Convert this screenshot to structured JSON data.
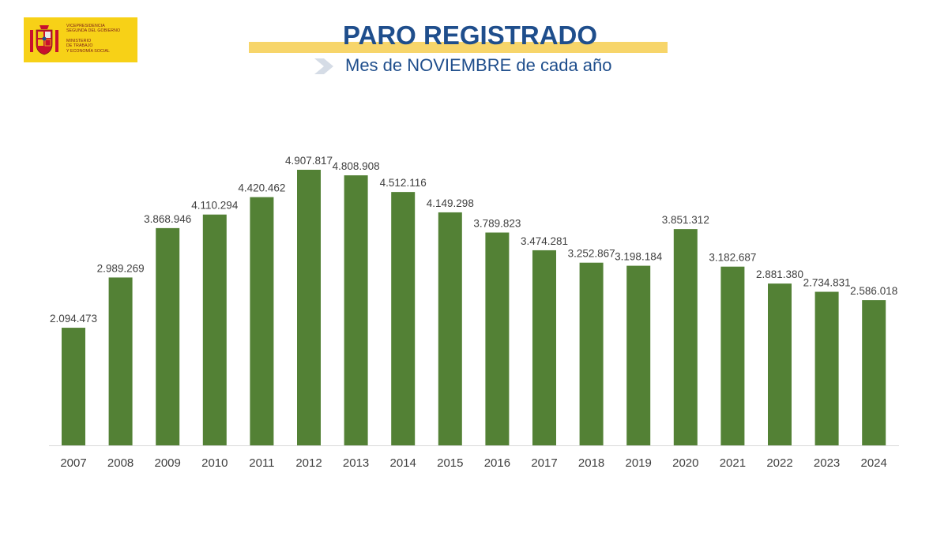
{
  "logo": {
    "line1": "Vicepresidencia",
    "line2": "Segunda del Gobierno",
    "line3": "Ministerio",
    "line4": "de Trabajo",
    "line5": "y Economía Social"
  },
  "colors": {
    "bar": "#538135",
    "title": "#1f4e8c",
    "band": "#f7d56a",
    "logo_bg": "#f7d117",
    "axis": "#d9d9d9",
    "label": "#404040"
  },
  "chart_data": {
    "type": "bar",
    "title": "PARO REGISTRADO",
    "subtitle": "Mes de NOVIEMBRE de cada año",
    "xlabel": "",
    "ylabel": "",
    "ylim": [
      0,
      5000000
    ],
    "grid": false,
    "categories": [
      "2007",
      "2008",
      "2009",
      "2010",
      "2011",
      "2012",
      "2013",
      "2014",
      "2015",
      "2016",
      "2017",
      "2018",
      "2019",
      "2020",
      "2021",
      "2022",
      "2023",
      "2024"
    ],
    "values": [
      2094473,
      2989269,
      3868946,
      4110294,
      4420462,
      4907817,
      4808908,
      4512116,
      4149298,
      3789823,
      3474281,
      3252867,
      3198184,
      3851312,
      3182687,
      2881380,
      2734831,
      2586018
    ],
    "labels": [
      "2.094.473",
      "2.989.269",
      "3.868.946",
      "4.110.294",
      "4.420.462",
      "4.907.817",
      "4.808.908",
      "4.512.116",
      "4.149.298",
      "3.789.823",
      "3.474.281",
      "3.252.867",
      "3.198.184",
      "3.851.312",
      "3.182.687",
      "2.881.380",
      "2.734.831",
      "2.586.018"
    ]
  }
}
